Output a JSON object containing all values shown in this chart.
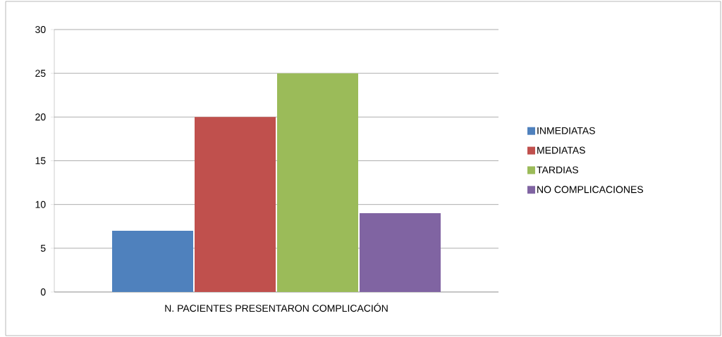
{
  "chart_data": {
    "type": "bar",
    "categories": [
      "N. PACIENTES PRESENTARON COMPLICACIÓN"
    ],
    "series": [
      {
        "name": "INMEDIATAS",
        "color": "#4f81bd",
        "values": [
          7
        ]
      },
      {
        "name": "MEDIATAS",
        "color": "#c0504d",
        "values": [
          20
        ]
      },
      {
        "name": "TARDIAS",
        "color": "#9bbb59",
        "values": [
          25
        ]
      },
      {
        "name": "NO COMPLICACIONES",
        "color": "#8064a2",
        "values": [
          9
        ]
      }
    ],
    "ylim": [
      0,
      30
    ],
    "yticks": [
      0,
      5,
      10,
      15,
      20,
      25,
      30
    ],
    "grid": "y",
    "legend": "right"
  }
}
